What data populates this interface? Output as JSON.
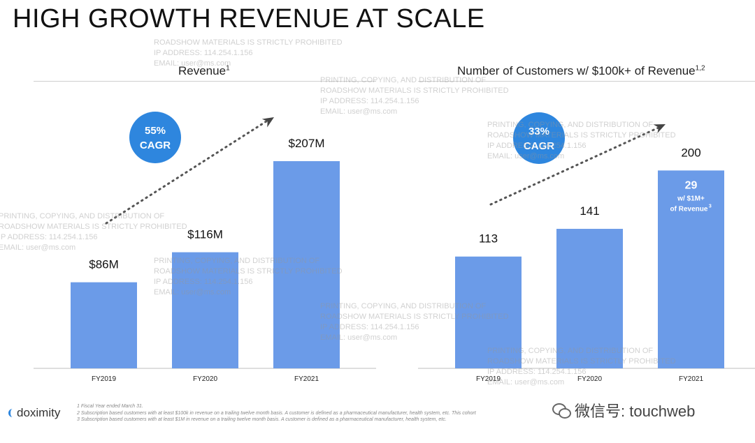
{
  "page": {
    "title": "HIGH GROWTH REVENUE AT SCALE"
  },
  "chart_data": [
    {
      "type": "bar",
      "title": "Revenue",
      "title_sup": "1",
      "categories": [
        "FY2019",
        "FY2020",
        "FY2021"
      ],
      "values": [
        86,
        116,
        207
      ],
      "labels": [
        "$86M",
        "$116M",
        "$207M"
      ],
      "unit": "$M",
      "ylim": [
        0,
        230
      ],
      "grid": false,
      "bar_color": "#6b9be8",
      "annotation": {
        "line1": "55%",
        "line2": "CAGR",
        "color": "#2e86de"
      }
    },
    {
      "type": "bar",
      "title": "Number of Customers w/ $100k+ of Revenue",
      "title_sup": "1,2",
      "categories": [
        "FY2019",
        "FY2020",
        "FY2021"
      ],
      "values": [
        113,
        141,
        200
      ],
      "labels": [
        "113",
        "141",
        "200"
      ],
      "ylim": [
        0,
        220
      ],
      "grid": false,
      "bar_color": "#6b9be8",
      "annotation": {
        "line1": "33%",
        "line2": "CAGR",
        "color": "#2e86de"
      },
      "inbar": {
        "value": "29",
        "line1": "w/ $1M+",
        "line2": "of Revenue",
        "sup": "3"
      }
    }
  ],
  "watermark": {
    "line1": "PRINTING, COPYING, AND DISTRIBUTION OF",
    "line2": "ROADSHOW MATERIALS IS STRICTLY PROHIBITED",
    "line3": "IP ADDRESS: 114.254.1.156",
    "line4": "EMAIL: user@ms.com"
  },
  "footer": {
    "logo": "doximity",
    "footnotes": [
      "1  Fiscal Year ended March 31.",
      "2  Subscription based customers with at least $100k in revenue on a trailing twelve month basis. A customer is defined as a pharmaceutical manufacturer, health system, etc. This cohort",
      "3  Subscription based customers with at least $1M in revenue on a trailing twelve month basis. A customer is defined as a pharmaceutical manufacturer, health system, etc."
    ],
    "wechat_text": "微信号: touchweb"
  }
}
